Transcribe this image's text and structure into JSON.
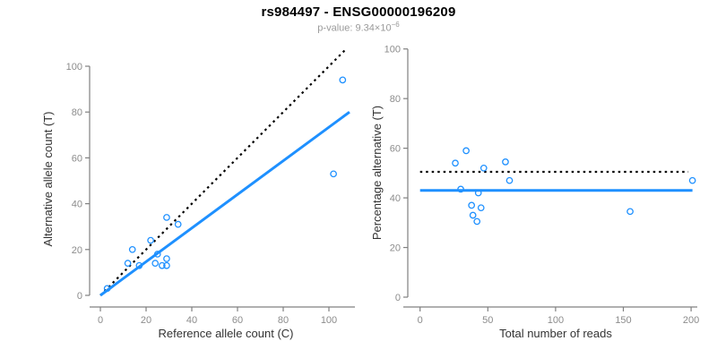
{
  "header": {
    "title": "rs984497 - ENSG00000196209",
    "subtitle_prefix": "p-value: 9.34×10",
    "subtitle_exponent": "−6"
  },
  "colors": {
    "accent_blue": "#1E90FF",
    "dotted_black": "#000000",
    "axis_line": "#808080",
    "tick_label": "#8c8c8c",
    "axis_title": "#333333",
    "point_stroke": "#1E90FF",
    "background": "#ffffff"
  },
  "chart_data": [
    {
      "id": "allele-count-scatter",
      "type": "scatter",
      "xlabel": "Reference allele count (C)",
      "ylabel": "Alternative allele count (T)",
      "xlim": [
        0,
        110
      ],
      "ylim": [
        0,
        110
      ],
      "xticks": [
        0,
        20,
        40,
        60,
        80,
        100
      ],
      "yticks": [
        0,
        20,
        40,
        60,
        80,
        100
      ],
      "grid": false,
      "legend": null,
      "points": [
        [
          3,
          3
        ],
        [
          12,
          14
        ],
        [
          14,
          20
        ],
        [
          17,
          13
        ],
        [
          22,
          24
        ],
        [
          24,
          14
        ],
        [
          25,
          18
        ],
        [
          27,
          13
        ],
        [
          29,
          13
        ],
        [
          29,
          16
        ],
        [
          29,
          34
        ],
        [
          34,
          31
        ],
        [
          102,
          53
        ],
        [
          106,
          94
        ]
      ],
      "lines": [
        {
          "name": "identity-line",
          "style": "dotted",
          "color": "#000000",
          "x1": 0,
          "y1": 0,
          "x2": 107,
          "y2": 107
        },
        {
          "name": "regression-line",
          "style": "solid",
          "color": "#1E90FF",
          "x1": 0,
          "y1": 0,
          "x2": 109,
          "y2": 80
        }
      ]
    },
    {
      "id": "percentage-scatter",
      "type": "scatter",
      "xlabel": "Total number of reads",
      "ylabel": "Percentage alternative (T)",
      "xlim": [
        0,
        205
      ],
      "ylim": [
        0,
        100
      ],
      "xticks": [
        0,
        50,
        100,
        150,
        200
      ],
      "yticks": [
        0,
        20,
        40,
        60,
        80,
        100
      ],
      "grid": false,
      "legend": null,
      "points": [
        [
          26,
          54
        ],
        [
          30,
          43.5
        ],
        [
          34,
          59
        ],
        [
          38,
          37
        ],
        [
          39,
          33
        ],
        [
          42,
          30.5
        ],
        [
          43,
          42
        ],
        [
          45,
          36
        ],
        [
          47,
          52
        ],
        [
          63,
          54.5
        ],
        [
          66,
          47
        ],
        [
          155,
          34.5
        ],
        [
          201,
          47
        ]
      ],
      "lines": [
        {
          "name": "fifty-percent-line",
          "style": "dotted",
          "color": "#000000",
          "x1": 0,
          "y1": 50.5,
          "x2": 198,
          "y2": 50.5
        },
        {
          "name": "mean-percentage-line",
          "style": "solid",
          "color": "#1E90FF",
          "x1": 0,
          "y1": 43,
          "x2": 201,
          "y2": 43
        }
      ]
    }
  ]
}
